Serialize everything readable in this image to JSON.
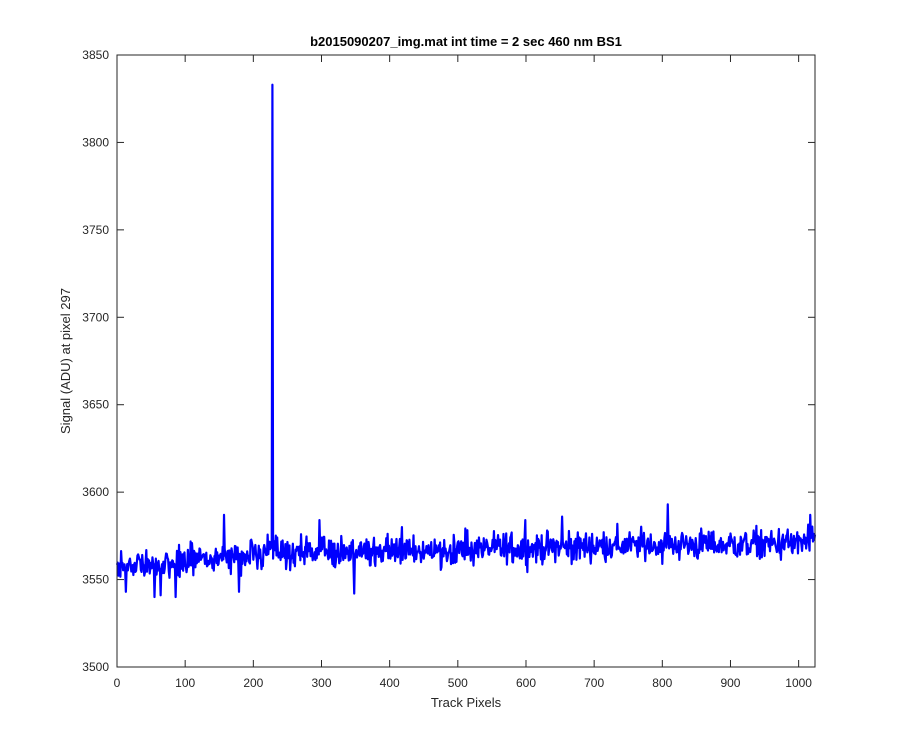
{
  "chart_data": {
    "type": "line",
    "title": "b2015090207_img.mat int time = 2 sec  460 nm BS1",
    "xlabel": "Track Pixels",
    "ylabel": "Signal (ADU) at pixel 297",
    "xlim": [
      0,
      1024
    ],
    "ylim": [
      3500,
      3850
    ],
    "xticks": [
      0,
      100,
      200,
      300,
      400,
      500,
      600,
      700,
      800,
      900,
      1000
    ],
    "yticks": [
      3500,
      3550,
      3600,
      3650,
      3700,
      3750,
      3800,
      3850
    ],
    "grid": false,
    "legend": "none",
    "series_color": "#0000ff",
    "noise_band": [
      {
        "x": 0,
        "mean": 3556,
        "amp": 7
      },
      {
        "x": 100,
        "mean": 3561,
        "amp": 8
      },
      {
        "x": 200,
        "mean": 3564,
        "amp": 8
      },
      {
        "x": 300,
        "mean": 3566,
        "amp": 8
      },
      {
        "x": 400,
        "mean": 3566,
        "amp": 8
      },
      {
        "x": 500,
        "mean": 3567,
        "amp": 8
      },
      {
        "x": 600,
        "mean": 3568,
        "amp": 8
      },
      {
        "x": 700,
        "mean": 3569,
        "amp": 8
      },
      {
        "x": 800,
        "mean": 3570,
        "amp": 8
      },
      {
        "x": 900,
        "mean": 3570,
        "amp": 8
      },
      {
        "x": 1024,
        "mean": 3571,
        "amp": 8
      }
    ],
    "notable_points": [
      {
        "x": 226,
        "y": 3570
      },
      {
        "x": 228,
        "y": 3833
      },
      {
        "x": 230,
        "y": 3572
      },
      {
        "x": 13,
        "y": 3543
      },
      {
        "x": 55,
        "y": 3540
      },
      {
        "x": 64,
        "y": 3541
      },
      {
        "x": 86,
        "y": 3540
      },
      {
        "x": 157,
        "y": 3587
      },
      {
        "x": 179,
        "y": 3543
      },
      {
        "x": 297,
        "y": 3584
      },
      {
        "x": 348,
        "y": 3542
      },
      {
        "x": 418,
        "y": 3580
      },
      {
        "x": 599,
        "y": 3584
      },
      {
        "x": 653,
        "y": 3586
      },
      {
        "x": 808,
        "y": 3593
      },
      {
        "x": 1017,
        "y": 3587
      }
    ]
  }
}
